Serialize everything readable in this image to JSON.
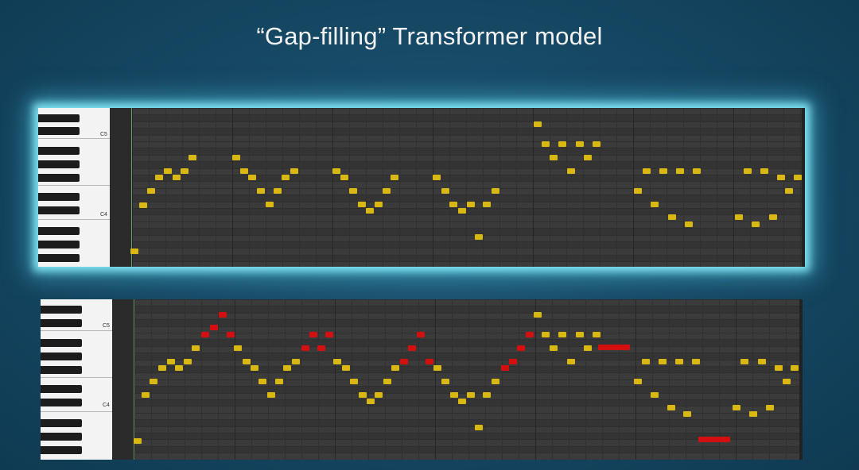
{
  "slide": {
    "title": "“Gap-filling” Transformer model"
  },
  "colors": {
    "original_note": "#d9b812",
    "generated_note": "#d40f0f",
    "glow": "#7fe3f2"
  },
  "piano_roll_labels": {
    "c5": "C5",
    "c4": "C4"
  },
  "top_roll": {
    "notes": [
      [
        168,
        316,
        "y"
      ],
      [
        179,
        258,
        "y"
      ],
      [
        189,
        240,
        "y"
      ],
      [
        199,
        223,
        "y"
      ],
      [
        210,
        215,
        "y"
      ],
      [
        221,
        223,
        "y"
      ],
      [
        231,
        215,
        "y"
      ],
      [
        241,
        198,
        "y"
      ],
      [
        296,
        198,
        "y"
      ],
      [
        306,
        215,
        "y"
      ],
      [
        316,
        223,
        "y"
      ],
      [
        327,
        240,
        "y"
      ],
      [
        338,
        257,
        "y"
      ],
      [
        348,
        240,
        "y"
      ],
      [
        358,
        223,
        "y"
      ],
      [
        369,
        215,
        "y"
      ],
      [
        422,
        215,
        "y"
      ],
      [
        432,
        223,
        "y"
      ],
      [
        443,
        240,
        "y"
      ],
      [
        454,
        257,
        "y"
      ],
      [
        464,
        265,
        "y"
      ],
      [
        475,
        257,
        "y"
      ],
      [
        485,
        240,
        "y"
      ],
      [
        495,
        223,
        "y"
      ],
      [
        548,
        223,
        "y"
      ],
      [
        559,
        240,
        "y"
      ],
      [
        569,
        257,
        "y"
      ],
      [
        580,
        265,
        "y"
      ],
      [
        591,
        257,
        "y"
      ],
      [
        601,
        298,
        "y"
      ],
      [
        611,
        257,
        "y"
      ],
      [
        622,
        240,
        "y"
      ],
      [
        675,
        156,
        "y"
      ],
      [
        685,
        181,
        "y"
      ],
      [
        695,
        198,
        "y"
      ],
      [
        706,
        181,
        "y"
      ],
      [
        717,
        215,
        "y"
      ],
      [
        728,
        181,
        "y"
      ],
      [
        738,
        198,
        "y"
      ],
      [
        749,
        181,
        "y"
      ],
      [
        801,
        240,
        "y"
      ],
      [
        812,
        215,
        "y"
      ],
      [
        822,
        257,
        "y"
      ],
      [
        833,
        215,
        "y"
      ],
      [
        844,
        273,
        "y"
      ],
      [
        854,
        215,
        "y"
      ],
      [
        865,
        282,
        "y"
      ],
      [
        875,
        215,
        "y"
      ],
      [
        928,
        273,
        "y"
      ],
      [
        939,
        215,
        "y"
      ],
      [
        949,
        282,
        "y"
      ],
      [
        960,
        215,
        "y"
      ],
      [
        971,
        273,
        "y"
      ],
      [
        981,
        223,
        "y"
      ],
      [
        991,
        240,
        "y"
      ],
      [
        1002,
        223,
        "y"
      ]
    ]
  },
  "bottom_roll": {
    "notes": [
      [
        172,
        555,
        "y"
      ],
      [
        182,
        497,
        "y"
      ],
      [
        192,
        480,
        "y"
      ],
      [
        203,
        463,
        "y"
      ],
      [
        214,
        455,
        "y"
      ],
      [
        224,
        463,
        "y"
      ],
      [
        235,
        455,
        "y"
      ],
      [
        245,
        438,
        "y"
      ],
      [
        257,
        421,
        "r"
      ],
      [
        268,
        412,
        "r"
      ],
      [
        279,
        396,
        "r"
      ],
      [
        289,
        421,
        "r"
      ],
      [
        298,
        438,
        "y"
      ],
      [
        309,
        455,
        "y"
      ],
      [
        319,
        463,
        "y"
      ],
      [
        329,
        480,
        "y"
      ],
      [
        340,
        497,
        "y"
      ],
      [
        350,
        480,
        "y"
      ],
      [
        360,
        463,
        "y"
      ],
      [
        371,
        455,
        "y"
      ],
      [
        383,
        438,
        "r"
      ],
      [
        393,
        421,
        "r"
      ],
      [
        403,
        438,
        "r"
      ],
      [
        413,
        421,
        "r"
      ],
      [
        423,
        455,
        "y"
      ],
      [
        434,
        463,
        "y"
      ],
      [
        444,
        480,
        "y"
      ],
      [
        455,
        497,
        "y"
      ],
      [
        465,
        505,
        "y"
      ],
      [
        475,
        497,
        "y"
      ],
      [
        486,
        480,
        "y"
      ],
      [
        496,
        463,
        "y"
      ],
      [
        507,
        455,
        "r"
      ],
      [
        517,
        438,
        "r"
      ],
      [
        528,
        421,
        "r"
      ],
      [
        539,
        455,
        "r"
      ],
      [
        549,
        463,
        "y"
      ],
      [
        559,
        480,
        "y"
      ],
      [
        570,
        497,
        "y"
      ],
      [
        580,
        505,
        "y"
      ],
      [
        591,
        497,
        "y"
      ],
      [
        601,
        538,
        "y"
      ],
      [
        611,
        497,
        "y"
      ],
      [
        622,
        480,
        "y"
      ],
      [
        634,
        463,
        "r"
      ],
      [
        644,
        455,
        "r"
      ],
      [
        654,
        438,
        "r"
      ],
      [
        665,
        421,
        "r"
      ],
      [
        675,
        396,
        "y"
      ],
      [
        685,
        421,
        "y"
      ],
      [
        695,
        438,
        "y"
      ],
      [
        706,
        421,
        "y"
      ],
      [
        717,
        455,
        "y"
      ],
      [
        728,
        421,
        "y"
      ],
      [
        738,
        438,
        "y"
      ],
      [
        749,
        421,
        "y"
      ],
      [
        756,
        437,
        "r"
      ],
      [
        766,
        437,
        "r"
      ],
      [
        776,
        437,
        "r"
      ],
      [
        786,
        437,
        "r"
      ],
      [
        801,
        480,
        "y"
      ],
      [
        811,
        455,
        "y"
      ],
      [
        822,
        497,
        "y"
      ],
      [
        832,
        455,
        "y"
      ],
      [
        843,
        513,
        "y"
      ],
      [
        853,
        455,
        "y"
      ],
      [
        863,
        521,
        "y"
      ],
      [
        874,
        455,
        "y"
      ],
      [
        882,
        553,
        "r"
      ],
      [
        892,
        553,
        "r"
      ],
      [
        902,
        553,
        "r"
      ],
      [
        912,
        553,
        "r"
      ],
      [
        925,
        513,
        "y"
      ],
      [
        935,
        455,
        "y"
      ],
      [
        946,
        521,
        "y"
      ],
      [
        957,
        455,
        "y"
      ],
      [
        967,
        513,
        "y"
      ],
      [
        978,
        463,
        "y"
      ],
      [
        988,
        480,
        "y"
      ],
      [
        998,
        463,
        "y"
      ]
    ]
  }
}
